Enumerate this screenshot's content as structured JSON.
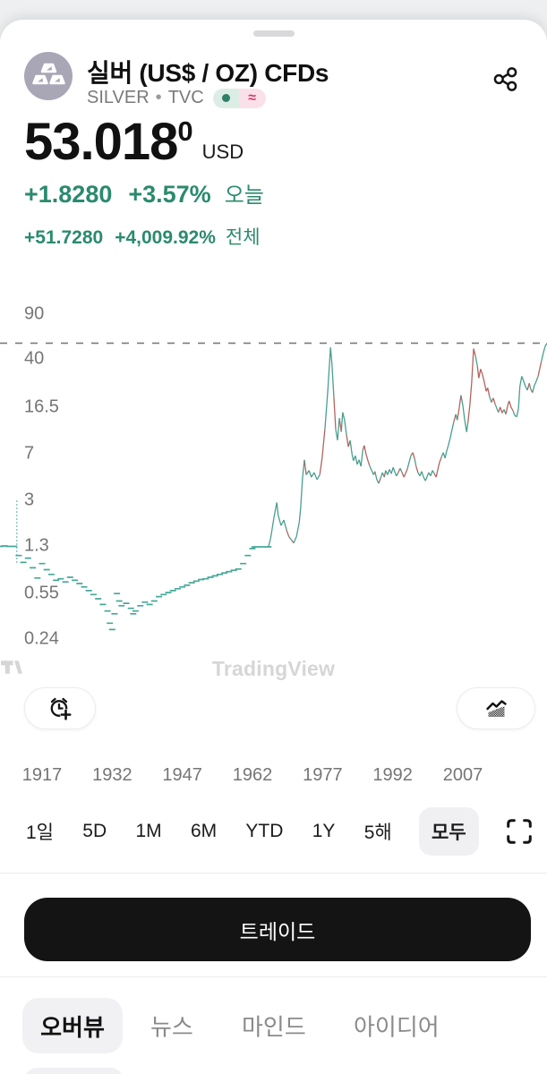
{
  "header": {
    "title": "실버 (US$ / OZ) CFDs",
    "symbol": "SILVER",
    "separator": "•",
    "exchange": "TVC",
    "badge": {
      "market_open_color": "#2f8069",
      "delayed_symbol": "≈",
      "delayed_color": "#cf3d68"
    }
  },
  "price": {
    "value": "53.018",
    "superscript": "0",
    "currency": "USD"
  },
  "change_today": {
    "abs": "+1.8280",
    "pct": "+3.57%",
    "label": "오늘",
    "color": "#2b8a6e"
  },
  "change_all": {
    "abs": "+51.7280",
    "pct": "+4,009.92%",
    "label": "전체",
    "color": "#2b8a6e"
  },
  "watermark": {
    "text": "TradingView"
  },
  "floating_buttons": {
    "add_alert": "alert-add",
    "chart_style": "area-chart-style"
  },
  "range_buttons": [
    {
      "label": "1일",
      "active": false
    },
    {
      "label": "5D",
      "active": false
    },
    {
      "label": "1M",
      "active": false
    },
    {
      "label": "6M",
      "active": false
    },
    {
      "label": "YTD",
      "active": false
    },
    {
      "label": "1Y",
      "active": false
    },
    {
      "label": "5해",
      "active": false
    },
    {
      "label": "모두",
      "active": true
    }
  ],
  "trade_button": {
    "label": "트레이드"
  },
  "tabs": [
    {
      "label": "오버뷰",
      "active": true
    },
    {
      "label": "뉴스",
      "active": false
    },
    {
      "label": "마인드",
      "active": false
    },
    {
      "label": "아이디어",
      "active": false
    }
  ],
  "chart_data": {
    "type": "line",
    "title": "SILVER (US$/OZ) all-time price, log scale",
    "legend": [],
    "grid": false,
    "y_axis": {
      "scale": "log",
      "ticks": [
        [
          "90",
          90
        ],
        [
          "40",
          40
        ],
        [
          "16.5",
          16.5
        ],
        [
          "7",
          7
        ],
        [
          "3",
          3
        ],
        [
          "1.3",
          1.3
        ],
        [
          "0.55",
          0.55
        ],
        [
          "0.24",
          0.24
        ]
      ]
    },
    "x_axis": {
      "tick_years": [
        1917,
        1932,
        1947,
        1962,
        1977,
        1992,
        2007
      ],
      "x_min": 1908,
      "x_max": 2025
    },
    "current_price_line": {
      "value": 53.018,
      "style": "dashed",
      "color": "#7b7b7b"
    },
    "colors": {
      "up": "#4a9e90",
      "down": "#b26460",
      "early_dash": "#45a898"
    },
    "early_spike": {
      "year": 1911.6,
      "high": 3.0,
      "low": 0.95
    },
    "series": [
      {
        "name": "SILVER",
        "points": [
          [
            1908,
            1.3
          ],
          [
            1909,
            1.31
          ],
          [
            1910,
            1.3
          ],
          [
            1911,
            1.3
          ],
          [
            1912,
            1.1
          ],
          [
            1913,
            0.97
          ],
          [
            1914,
            1.05
          ],
          [
            1915,
            0.88
          ],
          [
            1916,
            0.73
          ],
          [
            1917,
            0.95
          ],
          [
            1918,
            0.85
          ],
          [
            1919,
            0.78
          ],
          [
            1920,
            0.7
          ],
          [
            1921,
            0.72
          ],
          [
            1922,
            0.68
          ],
          [
            1923,
            0.74
          ],
          [
            1924,
            0.7
          ],
          [
            1925,
            0.66
          ],
          [
            1926,
            0.62
          ],
          [
            1927,
            0.58
          ],
          [
            1928,
            0.54
          ],
          [
            1929,
            0.5
          ],
          [
            1930,
            0.45
          ],
          [
            1931,
            0.4
          ],
          [
            1931.5,
            0.32
          ],
          [
            1932,
            0.285
          ],
          [
            1932.5,
            0.38
          ],
          [
            1933,
            0.55
          ],
          [
            1933.5,
            0.48
          ],
          [
            1934,
            0.44
          ],
          [
            1935,
            0.46
          ],
          [
            1936,
            0.42
          ],
          [
            1936.5,
            0.38
          ],
          [
            1937,
            0.4
          ],
          [
            1938,
            0.44
          ],
          [
            1939,
            0.47
          ],
          [
            1940,
            0.45
          ],
          [
            1941,
            0.48
          ],
          [
            1942,
            0.52
          ],
          [
            1943,
            0.54
          ],
          [
            1944,
            0.56
          ],
          [
            1945,
            0.58
          ],
          [
            1946,
            0.6
          ],
          [
            1947,
            0.62
          ],
          [
            1948,
            0.64
          ],
          [
            1949,
            0.67
          ],
          [
            1950,
            0.69
          ],
          [
            1951,
            0.71
          ],
          [
            1952,
            0.72
          ],
          [
            1953,
            0.74
          ],
          [
            1954,
            0.76
          ],
          [
            1955,
            0.78
          ],
          [
            1956,
            0.8
          ],
          [
            1957,
            0.82
          ],
          [
            1958,
            0.84
          ],
          [
            1959,
            0.86
          ],
          [
            1960,
            0.95
          ],
          [
            1961,
            1.1
          ],
          [
            1962,
            1.25
          ],
          [
            1962.5,
            1.29
          ],
          [
            1963,
            1.29
          ],
          [
            1964,
            1.29
          ],
          [
            1965,
            1.29
          ],
          [
            1965.4,
            1.29
          ],
          [
            1965.8,
            1.45
          ],
          [
            1966,
            1.6
          ],
          [
            1966.6,
            2.2
          ],
          [
            1967.2,
            2.9
          ],
          [
            1967.5,
            2.3
          ],
          [
            1968.1,
            1.9
          ],
          [
            1968.7,
            2.1
          ],
          [
            1969.3,
            1.75
          ],
          [
            1969.8,
            1.55
          ],
          [
            1970.4,
            1.45
          ],
          [
            1970.8,
            1.38
          ],
          [
            1971.4,
            1.55
          ],
          [
            1972,
            2.0
          ],
          [
            1972.3,
            2.6
          ],
          [
            1972.7,
            4.5
          ],
          [
            1973.1,
            6.3
          ],
          [
            1973.5,
            4.8
          ],
          [
            1974.1,
            5.2
          ],
          [
            1974.6,
            4.6
          ],
          [
            1975.2,
            5.0
          ],
          [
            1975.8,
            4.4
          ],
          [
            1976.4,
            4.8
          ],
          [
            1976.9,
            6.5
          ],
          [
            1977.5,
            11.0
          ],
          [
            1978.1,
            22.0
          ],
          [
            1978.7,
            49.0
          ],
          [
            1979,
            36.0
          ],
          [
            1979.4,
            20.0
          ],
          [
            1979.8,
            11.0
          ],
          [
            1980.2,
            9.0
          ],
          [
            1980.6,
            13.5
          ],
          [
            1981,
            10.5
          ],
          [
            1981.3,
            15.0
          ],
          [
            1981.7,
            13.0
          ],
          [
            1982.1,
            10.0
          ],
          [
            1982.5,
            8.0
          ],
          [
            1982.9,
            9.0
          ],
          [
            1983.3,
            7.0
          ],
          [
            1983.6,
            6.2
          ],
          [
            1984,
            6.8
          ],
          [
            1984.4,
            5.8
          ],
          [
            1984.8,
            6.3
          ],
          [
            1985.2,
            5.6
          ],
          [
            1985.6,
            7.5
          ],
          [
            1985.9,
            8.2
          ],
          [
            1986.3,
            7.0
          ],
          [
            1986.7,
            6.2
          ],
          [
            1987.1,
            5.6
          ],
          [
            1987.5,
            5.2
          ],
          [
            1987.9,
            4.8
          ],
          [
            1988.2,
            5.1
          ],
          [
            1988.6,
            4.4
          ],
          [
            1989,
            4.1
          ],
          [
            1989.4,
            4.5
          ],
          [
            1989.8,
            5.0
          ],
          [
            1990.2,
            4.6
          ],
          [
            1990.5,
            5.2
          ],
          [
            1990.9,
            4.8
          ],
          [
            1991.3,
            5.3
          ],
          [
            1991.7,
            4.9
          ],
          [
            1992.1,
            5.5
          ],
          [
            1992.4,
            5.1
          ],
          [
            1992.8,
            4.7
          ],
          [
            1993.2,
            5.0
          ],
          [
            1993.6,
            5.4
          ],
          [
            1994,
            5.0
          ],
          [
            1994.4,
            4.6
          ],
          [
            1994.7,
            4.9
          ],
          [
            1995.1,
            5.3
          ],
          [
            1995.5,
            6.0
          ],
          [
            1995.9,
            6.8
          ],
          [
            1996.3,
            7.2
          ],
          [
            1996.7,
            6.4
          ],
          [
            1997,
            5.6
          ],
          [
            1997.4,
            5.0
          ],
          [
            1997.8,
            4.7
          ],
          [
            1998.2,
            5.1
          ],
          [
            1998.6,
            4.6
          ],
          [
            1999,
            4.3
          ],
          [
            1999.3,
            4.6
          ],
          [
            1999.7,
            5.0
          ],
          [
            2000.1,
            4.7
          ],
          [
            2000.5,
            5.2
          ],
          [
            2000.9,
            4.9
          ],
          [
            2001.3,
            4.6
          ],
          [
            2001.6,
            5.2
          ],
          [
            2002,
            6.0
          ],
          [
            2002.4,
            6.6
          ],
          [
            2002.8,
            7.2
          ],
          [
            2003.2,
            6.5
          ],
          [
            2003.5,
            7.3
          ],
          [
            2003.9,
            8.2
          ],
          [
            2004.3,
            9.4
          ],
          [
            2004.7,
            11.0
          ],
          [
            2005.1,
            12.8
          ],
          [
            2005.5,
            14.5
          ],
          [
            2005.8,
            13.0
          ],
          [
            2006.2,
            16.0
          ],
          [
            2006.6,
            20.5
          ],
          [
            2007,
            17.0
          ],
          [
            2007.4,
            13.0
          ],
          [
            2007.8,
            10.5
          ],
          [
            2008.1,
            12.5
          ],
          [
            2008.5,
            17.0
          ],
          [
            2008.9,
            26.0
          ],
          [
            2009.3,
            48.0
          ],
          [
            2009.7,
            42.0
          ],
          [
            2010.1,
            35.0
          ],
          [
            2010.4,
            28.0
          ],
          [
            2010.8,
            33.0
          ],
          [
            2011.2,
            30.0
          ],
          [
            2011.6,
            26.0
          ],
          [
            2012,
            22.0
          ],
          [
            2012.3,
            23.5
          ],
          [
            2012.7,
            20.0
          ],
          [
            2013.1,
            18.0
          ],
          [
            2013.5,
            19.5
          ],
          [
            2013.9,
            17.5
          ],
          [
            2014.3,
            16.0
          ],
          [
            2014.6,
            15.0
          ],
          [
            2015,
            16.5
          ],
          [
            2015.4,
            14.8
          ],
          [
            2015.8,
            15.8
          ],
          [
            2016.2,
            14.5
          ],
          [
            2016.6,
            17.0
          ],
          [
            2016.9,
            18.5
          ],
          [
            2017.3,
            16.5
          ],
          [
            2017.7,
            15.5
          ],
          [
            2018.1,
            14.2
          ],
          [
            2018.5,
            13.8
          ],
          [
            2018.9,
            16.0
          ],
          [
            2019.2,
            24.0
          ],
          [
            2019.6,
            29.0
          ],
          [
            2020,
            26.5
          ],
          [
            2020.4,
            24.0
          ],
          [
            2020.8,
            22.5
          ],
          [
            2021.2,
            25.5
          ],
          [
            2021.5,
            23.0
          ],
          [
            2021.9,
            21.5
          ],
          [
            2022.3,
            24.5
          ],
          [
            2022.7,
            26.5
          ],
          [
            2023.1,
            29.0
          ],
          [
            2023.4,
            32.5
          ],
          [
            2023.8,
            38.0
          ],
          [
            2024.2,
            44.0
          ],
          [
            2024.6,
            50.0
          ],
          [
            2025,
            53.0
          ]
        ]
      }
    ]
  }
}
